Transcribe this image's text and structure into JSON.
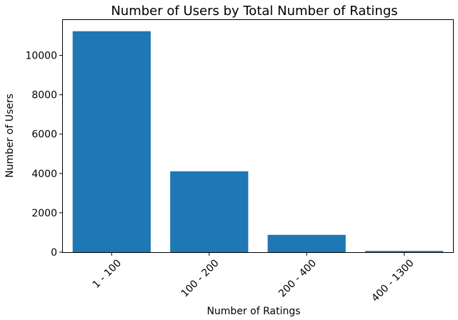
{
  "chart_data": {
    "type": "bar",
    "title": "Number of Users by Total Number of Ratings",
    "xlabel": "Number of Ratings",
    "ylabel": "Number of Users",
    "categories": [
      "1 - 100",
      "100 - 200",
      "200 - 400",
      "400 - 1300"
    ],
    "values": [
      11230,
      4110,
      880,
      60
    ],
    "ylim": [
      0,
      11800
    ],
    "yticks": [
      0,
      2000,
      4000,
      6000,
      8000,
      10000
    ],
    "grid": false,
    "bar_color": "#1f77b4",
    "xtick_rotation_deg": 45
  }
}
